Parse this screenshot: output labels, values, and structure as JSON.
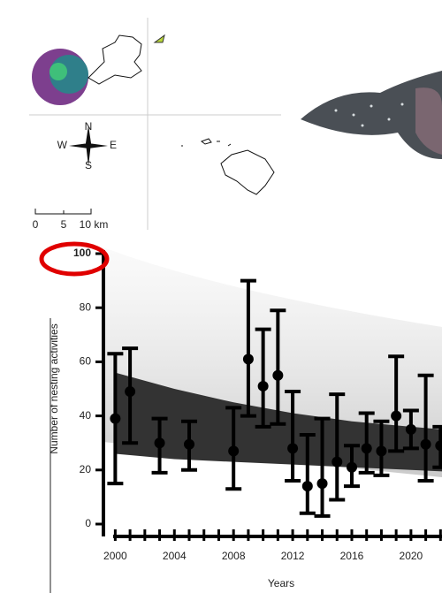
{
  "map": {
    "compass": {
      "north": "N",
      "south": "S",
      "west": "W",
      "east": "E"
    },
    "scale": [
      "0",
      "5",
      "10 km"
    ]
  },
  "chart_data": {
    "type": "errorbar",
    "x_label": "Years",
    "y_label": "Number of nesting activities",
    "x": [
      2000,
      2001,
      2003,
      2005,
      2008,
      2009,
      2010,
      2011,
      2012,
      2013,
      2014,
      2015,
      2016,
      2017,
      2018,
      2019,
      2020,
      2021,
      2022
    ],
    "series": [
      {
        "color": "#000000",
        "values": [
          39,
          49,
          30,
          29.5,
          27,
          61,
          51,
          55,
          28,
          14,
          15,
          23,
          21,
          28,
          27,
          40,
          35,
          29.5,
          29
        ],
        "lower": [
          15,
          30,
          19,
          20,
          13,
          40,
          36,
          37,
          16,
          4,
          3,
          9,
          14,
          19,
          18,
          27,
          28,
          16,
          21
        ],
        "upper": [
          63,
          65,
          39,
          38,
          43,
          90,
          72,
          79,
          49,
          33,
          39,
          48,
          29,
          41,
          38,
          62,
          42,
          55,
          36
        ]
      }
    ],
    "band": {
      "color": "#333333",
      "x": [
        2000,
        2004,
        2008,
        2012,
        2016,
        2020,
        2022.1
      ],
      "lower": [
        26,
        24,
        23,
        22,
        21,
        20,
        19.5
      ],
      "upper": [
        56,
        50,
        45,
        41,
        38,
        36,
        35
      ]
    },
    "xlim": [
      1999.2,
      2022.1
    ],
    "ylim": [
      0,
      100
    ],
    "xticks": [
      2000,
      2004,
      2008,
      2012,
      2016,
      2020
    ],
    "xminorticks": [
      2000,
      2001,
      2002,
      2003,
      2004,
      2005,
      2006,
      2007,
      2008,
      2009,
      2010,
      2011,
      2012,
      2013,
      2014,
      2015,
      2016,
      2017,
      2018,
      2019,
      2020,
      2021,
      2022
    ],
    "yticks": [
      0,
      20,
      40,
      60,
      80,
      100
    ]
  }
}
